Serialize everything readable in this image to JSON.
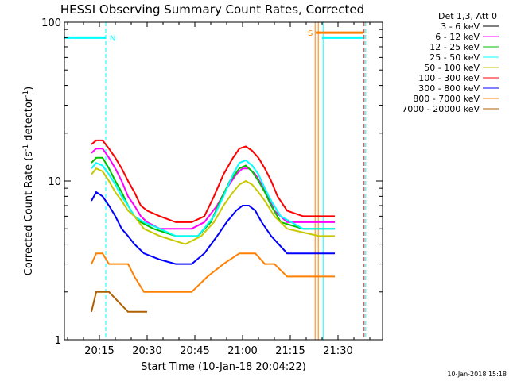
{
  "chart_data": {
    "type": "line",
    "title": "HESSI Observing Summary Count Rates, Corrected",
    "xlabel": "Start Time (10-Jan-18 20:04:22)",
    "ylabel": "Corrected Count Rate (s⁻¹ detector⁻¹)",
    "ylabel_main": "Corrected Count Rate (s",
    "ylabel_mid": " detector",
    "ylabel_end": ")",
    "ylabel_exp": "-1",
    "xaxis_minutes": [
      0,
      100
    ],
    "ylim": [
      1,
      100
    ],
    "yscale": "log",
    "xticks": [
      {
        "minute": 11,
        "label": "20:15"
      },
      {
        "minute": 26,
        "label": "20:30"
      },
      {
        "minute": 41,
        "label": "20:45"
      },
      {
        "minute": 56,
        "label": "21:00"
      },
      {
        "minute": 71,
        "label": "21:15"
      },
      {
        "minute": 86,
        "label": "21:30"
      }
    ],
    "yticks": [
      {
        "value": 1,
        "label": "1"
      },
      {
        "value": 10,
        "label": "10"
      },
      {
        "value": 100,
        "label": "100"
      }
    ],
    "legend_header": "Det 1,3, Att 0",
    "series": [
      {
        "name": "3 - 6 keV",
        "color": "#000000",
        "points": []
      },
      {
        "name": "6 - 12 keV",
        "color": "#ff00ff",
        "points": [
          [
            8.5,
            15
          ],
          [
            10,
            16
          ],
          [
            12,
            16
          ],
          [
            14,
            14
          ],
          [
            16,
            12
          ],
          [
            18,
            10
          ],
          [
            20,
            8
          ],
          [
            22,
            7
          ],
          [
            24,
            6
          ],
          [
            26,
            5.5
          ],
          [
            30,
            5
          ],
          [
            35,
            5
          ],
          [
            40,
            5
          ],
          [
            44,
            5.5
          ],
          [
            48,
            7
          ],
          [
            51,
            9
          ],
          [
            54,
            11
          ],
          [
            56,
            12
          ],
          [
            58,
            12
          ],
          [
            60,
            11
          ],
          [
            62,
            9.5
          ],
          [
            64,
            8
          ],
          [
            66,
            6.5
          ],
          [
            70,
            5.5
          ],
          [
            75,
            5.5
          ],
          [
            80,
            5.5
          ],
          [
            85,
            5.5
          ]
        ]
      },
      {
        "name": "12 - 25 keV",
        "color": "#00c000",
        "points": [
          [
            8.5,
            13
          ],
          [
            10,
            14
          ],
          [
            12,
            14
          ],
          [
            14,
            12
          ],
          [
            16,
            10
          ],
          [
            18,
            8.5
          ],
          [
            20,
            7
          ],
          [
            22,
            6
          ],
          [
            24,
            5.5
          ],
          [
            28,
            5
          ],
          [
            35,
            4.5
          ],
          [
            42,
            4.5
          ],
          [
            46,
            5.5
          ],
          [
            49,
            7.5
          ],
          [
            52,
            10
          ],
          [
            55,
            12
          ],
          [
            57,
            12.5
          ],
          [
            59,
            11.5
          ],
          [
            61,
            10
          ],
          [
            63,
            8.5
          ],
          [
            65,
            7
          ],
          [
            68,
            5.5
          ],
          [
            75,
            5
          ],
          [
            80,
            5
          ],
          [
            85,
            5
          ]
        ]
      },
      {
        "name": "25 - 50 keV",
        "color": "#00ffff",
        "points": [
          [
            8.5,
            12
          ],
          [
            10,
            13
          ],
          [
            12,
            12.5
          ],
          [
            14,
            11
          ],
          [
            16,
            9.5
          ],
          [
            18,
            8
          ],
          [
            20,
            7
          ],
          [
            22,
            6
          ],
          [
            25,
            5.5
          ],
          [
            30,
            5
          ],
          [
            35,
            4.5
          ],
          [
            42,
            4.5
          ],
          [
            47,
            6
          ],
          [
            50,
            8
          ],
          [
            53,
            11
          ],
          [
            55,
            13
          ],
          [
            57,
            13.5
          ],
          [
            59,
            12.5
          ],
          [
            61,
            11
          ],
          [
            63,
            9
          ],
          [
            65,
            7.5
          ],
          [
            68,
            6
          ],
          [
            75,
            5
          ],
          [
            80,
            5
          ],
          [
            85,
            5
          ]
        ]
      },
      {
        "name": "50 - 100 keV",
        "color": "#c8c800",
        "points": [
          [
            8.5,
            11
          ],
          [
            10,
            12
          ],
          [
            12,
            11.5
          ],
          [
            14,
            10
          ],
          [
            16,
            8.5
          ],
          [
            18,
            7.5
          ],
          [
            20,
            6.5
          ],
          [
            22,
            6
          ],
          [
            25,
            5
          ],
          [
            30,
            4.5
          ],
          [
            38,
            4
          ],
          [
            43,
            4.5
          ],
          [
            47,
            5.5
          ],
          [
            50,
            7
          ],
          [
            53,
            8.5
          ],
          [
            55,
            9.5
          ],
          [
            57,
            10
          ],
          [
            59,
            9.5
          ],
          [
            61,
            8.5
          ],
          [
            63,
            7.5
          ],
          [
            66,
            6
          ],
          [
            70,
            5
          ],
          [
            80,
            4.5
          ],
          [
            85,
            4.5
          ]
        ]
      },
      {
        "name": "100 - 300 keV",
        "color": "#ff0000",
        "points": [
          [
            8.5,
            17
          ],
          [
            10,
            18
          ],
          [
            12,
            18
          ],
          [
            14,
            16
          ],
          [
            16,
            14
          ],
          [
            18,
            12
          ],
          [
            20,
            10
          ],
          [
            22,
            8.5
          ],
          [
            24,
            7
          ],
          [
            26,
            6.5
          ],
          [
            30,
            6
          ],
          [
            35,
            5.5
          ],
          [
            40,
            5.5
          ],
          [
            44,
            6
          ],
          [
            47,
            8
          ],
          [
            50,
            11
          ],
          [
            53,
            14
          ],
          [
            55,
            16
          ],
          [
            57,
            16.5
          ],
          [
            59,
            15.5
          ],
          [
            61,
            14
          ],
          [
            63,
            12
          ],
          [
            65,
            10
          ],
          [
            67,
            8
          ],
          [
            70,
            6.5
          ],
          [
            75,
            6
          ],
          [
            80,
            6
          ],
          [
            85,
            6
          ]
        ]
      },
      {
        "name": "300 - 800 keV",
        "color": "#0000ff",
        "points": [
          [
            8.5,
            7.5
          ],
          [
            10,
            8.5
          ],
          [
            12,
            8
          ],
          [
            14,
            7
          ],
          [
            16,
            6
          ],
          [
            18,
            5
          ],
          [
            20,
            4.5
          ],
          [
            22,
            4
          ],
          [
            25,
            3.5
          ],
          [
            30,
            3.2
          ],
          [
            35,
            3
          ],
          [
            40,
            3
          ],
          [
            44,
            3.5
          ],
          [
            48,
            4.5
          ],
          [
            51,
            5.5
          ],
          [
            54,
            6.5
          ],
          [
            56,
            7
          ],
          [
            58,
            7
          ],
          [
            60,
            6.5
          ],
          [
            62,
            5.5
          ],
          [
            65,
            4.5
          ],
          [
            70,
            3.5
          ],
          [
            75,
            3.5
          ],
          [
            80,
            3.5
          ],
          [
            85,
            3.5
          ]
        ]
      },
      {
        "name": "800 - 7000 keV",
        "color": "#ff8000",
        "points": [
          [
            8.5,
            3
          ],
          [
            10,
            3.5
          ],
          [
            12,
            3.5
          ],
          [
            14,
            3
          ],
          [
            16,
            3
          ],
          [
            18,
            3
          ],
          [
            20,
            3
          ],
          [
            22,
            2.5
          ],
          [
            25,
            2
          ],
          [
            30,
            2
          ],
          [
            35,
            2
          ],
          [
            40,
            2
          ],
          [
            45,
            2.5
          ],
          [
            50,
            3
          ],
          [
            55,
            3.5
          ],
          [
            58,
            3.5
          ],
          [
            60,
            3.5
          ],
          [
            63,
            3
          ],
          [
            66,
            3
          ],
          [
            70,
            2.5
          ],
          [
            75,
            2.5
          ],
          [
            80,
            2.5
          ],
          [
            85,
            2.5
          ]
        ]
      },
      {
        "name": "7000 - 20000 keV",
        "color": "#b06000",
        "points": [
          [
            8.5,
            1.5
          ],
          [
            10,
            2
          ],
          [
            14,
            2
          ],
          [
            20,
            1.5
          ],
          [
            26,
            1.5
          ]
        ]
      }
    ],
    "observing_bars": [
      {
        "label": "N",
        "color": "#00ffff",
        "start_minute": 0,
        "end_minute": 13,
        "value": 80,
        "show_label": true
      },
      {
        "label": "",
        "color": "#00ffff",
        "start_minute": 81,
        "end_minute": 94,
        "value": 80,
        "show_label": false
      },
      {
        "label": "S",
        "color": "#ff8000",
        "start_minute": 79,
        "end_minute": 94,
        "value": 86,
        "show_label": true
      }
    ],
    "vertical_markers": [
      {
        "minute": 0,
        "color": "#00ffff",
        "style": "solid"
      },
      {
        "minute": 13,
        "color": "#00ffff",
        "style": "dashed"
      },
      {
        "minute": 78.8,
        "color": "#ff8000",
        "style": "solid"
      },
      {
        "minute": 79.8,
        "color": "#ff8000",
        "style": "solid"
      },
      {
        "minute": 81.3,
        "color": "#00ffff",
        "style": "solid"
      },
      {
        "minute": 94.2,
        "color": "#ff0000",
        "style": "dashed"
      },
      {
        "minute": 94.7,
        "color": "#00ffff",
        "style": "dashed"
      }
    ],
    "timestamp": "10-Jan-2018 15:18"
  }
}
